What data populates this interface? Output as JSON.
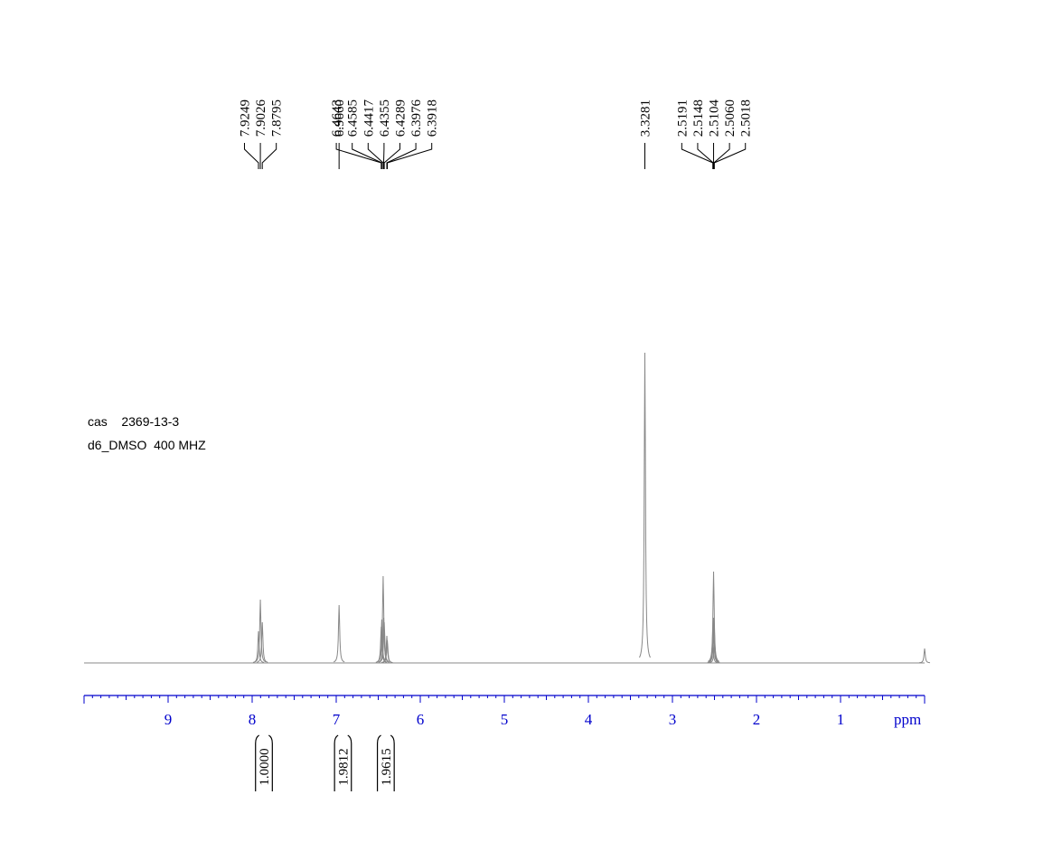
{
  "chart_data": {
    "type": "nmr",
    "annotations": [
      "cas    2369-13-3",
      "d6_DMSO  400 MHZ"
    ],
    "x_label": "ppm",
    "xlim": [
      10,
      0
    ],
    "xticks": [
      9,
      8,
      7,
      6,
      5,
      4,
      3,
      2,
      1
    ],
    "color": "#888888",
    "axis_color": "#0000cc",
    "peaks": {
      "x": [
        7.9249,
        7.9026,
        7.8795,
        6.966,
        6.4643,
        6.4585,
        6.4417,
        6.4355,
        6.4289,
        6.3976,
        6.3918,
        3.3281,
        2.5191,
        2.5148,
        2.5104,
        2.506,
        2.5018,
        0
      ],
      "values": [
        35,
        70,
        45,
        64,
        40,
        48,
        96,
        50,
        45,
        30,
        25,
        343,
        20,
        50,
        101,
        50,
        20,
        16
      ],
      "labels": [
        "7.9249",
        "7.9026",
        "7.8795",
        "6.9660",
        "6.4643",
        "6.4585",
        "6.4417",
        "6.4355",
        "6.4289",
        "6.3976",
        "6.3918",
        "3.3281",
        "2.5191",
        "2.5148",
        "2.5104",
        "2.5060",
        "2.5018",
        null
      ]
    },
    "integrals": {
      "ranges": [
        [
          7.96,
          7.76
        ],
        [
          7.02,
          6.82
        ],
        [
          6.51,
          6.31
        ]
      ],
      "values": [
        1,
        1.9812,
        1.9615
      ],
      "value_labels": [
        "1.0000",
        "1.9812",
        "1.9615"
      ]
    }
  }
}
